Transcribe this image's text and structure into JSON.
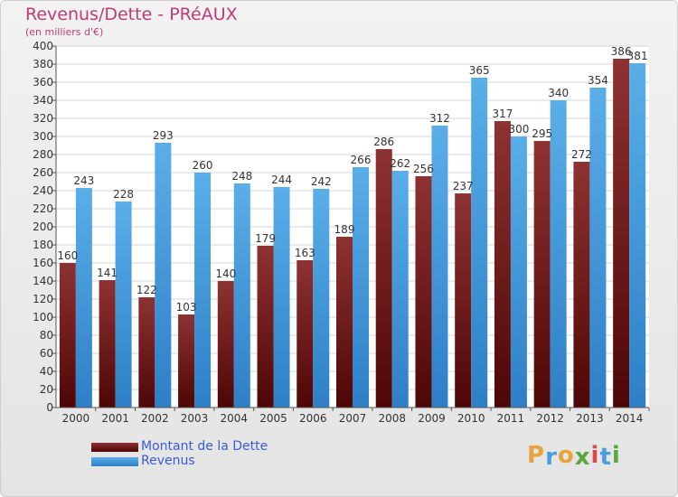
{
  "chart_data": {
    "type": "bar",
    "title": "Revenus/Dette - PRéAUX",
    "subtitle": "(en milliers d'€)",
    "categories": [
      "2000",
      "2001",
      "2002",
      "2003",
      "2004",
      "2005",
      "2006",
      "2007",
      "2008",
      "2009",
      "2010",
      "2011",
      "2012",
      "2013",
      "2014"
    ],
    "series": [
      {
        "name": "Montant de la Dette",
        "values": [
          160,
          141,
          122,
          103,
          140,
          179,
          163,
          189,
          286,
          256,
          237,
          317,
          295,
          272,
          386
        ],
        "color": "#7a1c1c"
      },
      {
        "name": "Revenus",
        "values": [
          243,
          228,
          293,
          260,
          248,
          244,
          242,
          266,
          262,
          312,
          365,
          300,
          340,
          354,
          381
        ],
        "color": "#4da6e8"
      }
    ],
    "ylim": [
      0,
      400
    ],
    "ytick_step": 20,
    "grid": true,
    "legend_position": "bottom-left"
  },
  "logo": {
    "letters": [
      "P",
      "r",
      "o",
      "x",
      "i",
      "t",
      "i"
    ],
    "colors": [
      "#e8a33a",
      "#4a9de0",
      "#e8a33a",
      "#5aa83c",
      "#d94a4a",
      "#4a9de0",
      "#5aa83c"
    ]
  }
}
